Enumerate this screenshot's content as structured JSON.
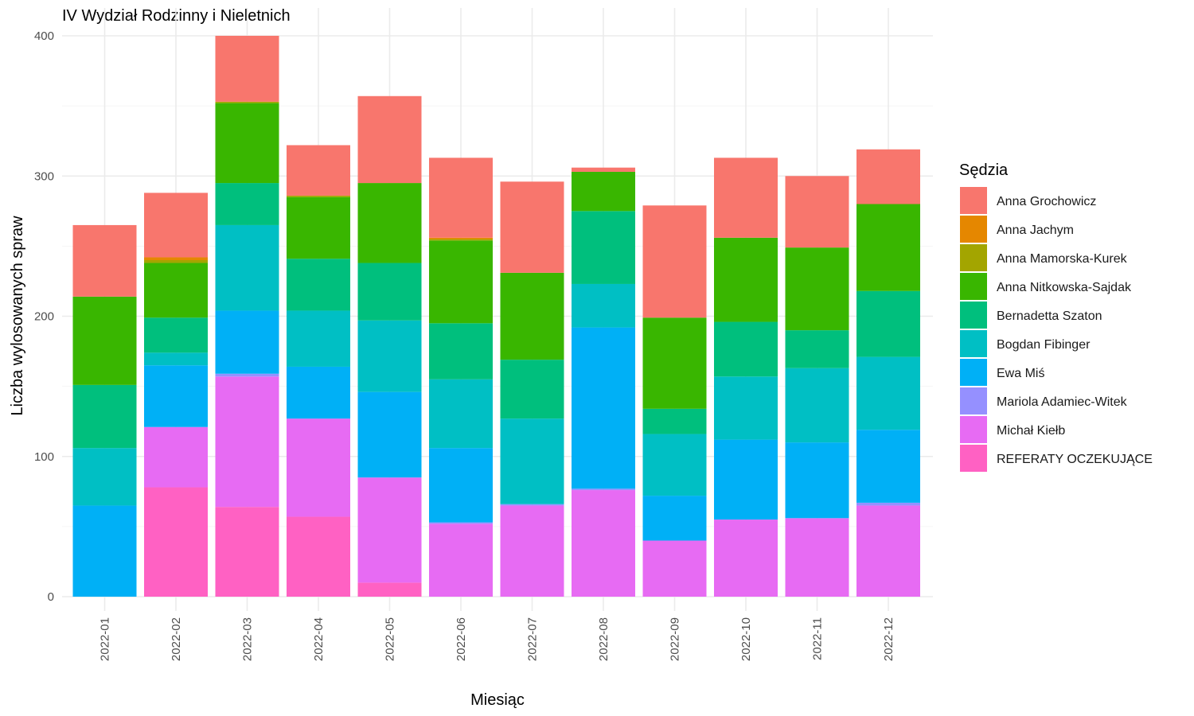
{
  "chart_data": {
    "type": "bar",
    "stacked": true,
    "title": "IV Wydział Rodzinny i Nieletnich",
    "xlabel": "Miesiąc",
    "ylabel": "Liczba wylosowanych spraw",
    "ylim": [
      0,
      400
    ],
    "yticks": [
      "0",
      "100",
      "200",
      "300",
      "400"
    ],
    "grid": true,
    "legend_title": "Sędzia",
    "legend_position": "right",
    "categories": [
      "2022-01",
      "2022-02",
      "2022-03",
      "2022-04",
      "2022-05",
      "2022-06",
      "2022-07",
      "2022-08",
      "2022-09",
      "2022-10",
      "2022-11",
      "2022-12"
    ],
    "series": [
      {
        "name": "REFERATY OCZEKUJĄCE",
        "color": "#FF61C3",
        "values": [
          0,
          78,
          64,
          57,
          10,
          0,
          0,
          0,
          0,
          0,
          0,
          0
        ]
      },
      {
        "name": "Michał Kiełb",
        "color": "#E76BF3",
        "values": [
          0,
          43,
          93,
          70,
          75,
          52,
          65,
          76,
          40,
          55,
          56,
          65
        ]
      },
      {
        "name": "Mariola Adamiec-Witek",
        "color": "#9590FF",
        "values": [
          0,
          0,
          2,
          0,
          0,
          1,
          1,
          1,
          0,
          0,
          0,
          2
        ]
      },
      {
        "name": "Ewa Miś",
        "color": "#00B0F6",
        "values": [
          65,
          44,
          45,
          37,
          61,
          53,
          0,
          115,
          32,
          57,
          54,
          52
        ]
      },
      {
        "name": "Bogdan Fibinger",
        "color": "#00BFC4",
        "values": [
          41,
          9,
          61,
          40,
          51,
          49,
          61,
          31,
          44,
          45,
          53,
          52
        ]
      },
      {
        "name": "Bernadetta Szaton",
        "color": "#00BF7D",
        "values": [
          45,
          25,
          30,
          37,
          41,
          40,
          42,
          52,
          18,
          39,
          27,
          47
        ]
      },
      {
        "name": "Anna Nitkowska-Sajdak",
        "color": "#39B600",
        "values": [
          63,
          39,
          57,
          44,
          57,
          59,
          62,
          28,
          65,
          60,
          59,
          62
        ]
      },
      {
        "name": "Anna Mamorska-Kurek",
        "color": "#A3A500",
        "values": [
          0,
          2,
          1,
          1,
          0,
          1,
          0,
          0,
          0,
          0,
          0,
          0
        ]
      },
      {
        "name": "Anna Jachym",
        "color": "#E58700",
        "values": [
          0,
          2,
          0,
          0,
          0,
          1,
          0,
          0,
          0,
          0,
          0,
          0
        ]
      },
      {
        "name": "Anna Grochowicz",
        "color": "#F8766D",
        "values": [
          51,
          46,
          47,
          36,
          62,
          57,
          65,
          3,
          80,
          57,
          51,
          39
        ]
      }
    ],
    "legend_order": [
      "Anna Grochowicz",
      "Anna Jachym",
      "Anna Mamorska-Kurek",
      "Anna Nitkowska-Sajdak",
      "Bernadetta Szaton",
      "Bogdan Fibinger",
      "Ewa Miś",
      "Mariola Adamiec-Witek",
      "Michał Kiełb",
      "REFERATY OCZEKUJĄCE"
    ]
  }
}
